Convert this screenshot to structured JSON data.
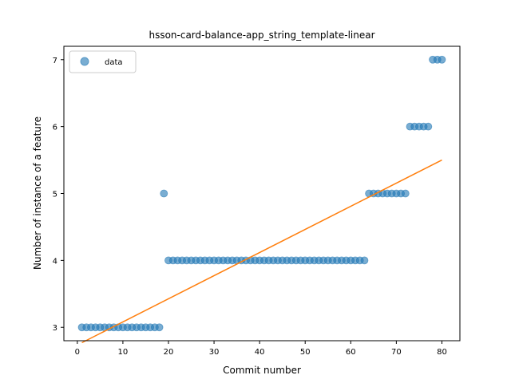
{
  "chart_data": {
    "type": "scatter",
    "title": "hsson-card-balance-app_string_template-linear",
    "xlabel": "Commit number",
    "ylabel": "Number of instance of a feature",
    "xlim": [
      -2.95,
      83.95
    ],
    "ylim": [
      2.8,
      7.2
    ],
    "xticks": [
      0,
      10,
      20,
      30,
      40,
      50,
      60,
      70,
      80
    ],
    "yticks": [
      3,
      4,
      5,
      6,
      7
    ],
    "grid": false,
    "legend_position": "top-left",
    "series": [
      {
        "name": "data",
        "kind": "scatter",
        "color": "#1f77b4",
        "x": [
          1,
          2,
          3,
          4,
          5,
          6,
          7,
          8,
          9,
          10,
          11,
          12,
          13,
          14,
          15,
          16,
          17,
          18,
          19,
          20,
          21,
          22,
          23,
          24,
          25,
          26,
          27,
          28,
          29,
          30,
          31,
          32,
          33,
          34,
          35,
          36,
          37,
          38,
          39,
          40,
          41,
          42,
          43,
          44,
          45,
          46,
          47,
          48,
          49,
          50,
          51,
          52,
          53,
          54,
          55,
          56,
          57,
          58,
          59,
          60,
          61,
          62,
          63,
          64,
          65,
          66,
          67,
          68,
          69,
          70,
          71,
          72,
          73,
          74,
          75,
          76,
          77,
          78,
          79,
          80
        ],
        "y": [
          3,
          3,
          3,
          3,
          3,
          3,
          3,
          3,
          3,
          3,
          3,
          3,
          3,
          3,
          3,
          3,
          3,
          3,
          5,
          4,
          4,
          4,
          4,
          4,
          4,
          4,
          4,
          4,
          4,
          4,
          4,
          4,
          4,
          4,
          4,
          4,
          4,
          4,
          4,
          4,
          4,
          4,
          4,
          4,
          4,
          4,
          4,
          4,
          4,
          4,
          4,
          4,
          4,
          4,
          4,
          4,
          4,
          4,
          4,
          4,
          4,
          4,
          4,
          5,
          5,
          5,
          5,
          5,
          5,
          5,
          5,
          5,
          6,
          6,
          6,
          6,
          6,
          7,
          7,
          7
        ]
      },
      {
        "name": "",
        "kind": "line",
        "color": "#ff7f0e",
        "x": [
          1,
          80
        ],
        "y": [
          2.77,
          5.5
        ]
      }
    ]
  }
}
